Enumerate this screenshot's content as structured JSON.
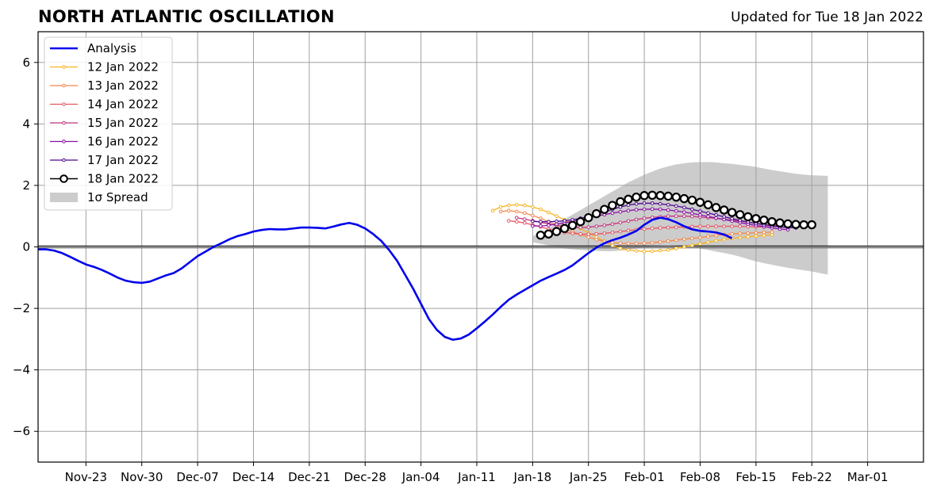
{
  "header": {
    "title": "NORTH ATLANTIC OSCILLATION",
    "subtitle": "Updated for Tue 18 Jan 2022"
  },
  "chart_data": {
    "type": "line",
    "title": "NORTH ATLANTIC OSCILLATION",
    "subtitle": "Updated for Tue 18 Jan 2022",
    "xlabel": "",
    "ylabel": "",
    "ylim": [
      -7,
      7
    ],
    "yticks": [
      -6,
      -4,
      -2,
      0,
      2,
      4,
      6
    ],
    "ytick_labels": [
      "−6",
      "−4",
      "−2",
      "0",
      "2",
      "4",
      "6"
    ],
    "x_start": "2021-11-17",
    "x_end": "2022-03-08",
    "xticks": [
      "2021-11-23",
      "2021-11-30",
      "2021-12-07",
      "2021-12-14",
      "2021-12-21",
      "2021-12-28",
      "2022-01-04",
      "2022-01-11",
      "2022-01-18",
      "2022-01-25",
      "2022-02-01",
      "2022-02-08",
      "2022-02-15",
      "2022-02-22",
      "2022-03-01"
    ],
    "xtick_labels": [
      "Nov-23",
      "Nov-30",
      "Dec-07",
      "Dec-14",
      "Dec-21",
      "Dec-28",
      "Jan-04",
      "Jan-11",
      "Jan-18",
      "Jan-25",
      "Feb-01",
      "Feb-08",
      "Feb-15",
      "Feb-22",
      "Mar-01"
    ],
    "grid": true,
    "zero_line": true,
    "legend_position": "top-left",
    "colors": {
      "analysis": "#0000ee",
      "spread": "#cccccc",
      "grid": "#a0a0a0"
    },
    "analysis": {
      "name": "Analysis",
      "start_date": "2021-11-17",
      "values": [
        -0.08,
        -0.08,
        -0.12,
        -0.2,
        -0.32,
        -0.45,
        -0.57,
        -0.65,
        -0.75,
        -0.87,
        -1.0,
        -1.1,
        -1.15,
        -1.17,
        -1.13,
        -1.03,
        -0.93,
        -0.85,
        -0.7,
        -0.5,
        -0.3,
        -0.15,
        0.0,
        0.12,
        0.25,
        0.35,
        0.42,
        0.5,
        0.55,
        0.58,
        0.57,
        0.57,
        0.6,
        0.63,
        0.63,
        0.62,
        0.6,
        0.66,
        0.73,
        0.78,
        0.72,
        0.6,
        0.42,
        0.2,
        -0.1,
        -0.45,
        -0.9,
        -1.35,
        -1.85,
        -2.35,
        -2.7,
        -2.93,
        -3.02,
        -2.98,
        -2.85,
        -2.65,
        -2.43,
        -2.2,
        -1.95,
        -1.72,
        -1.55,
        -1.4,
        -1.25,
        -1.1,
        -0.98,
        -0.87,
        -0.75,
        -0.6,
        -0.4,
        -0.2,
        -0.02,
        0.12,
        0.22,
        0.3,
        0.4,
        0.52,
        0.72,
        0.88,
        0.95,
        0.9,
        0.8,
        0.67,
        0.57,
        0.52,
        0.5,
        0.47,
        0.4,
        0.28
      ]
    },
    "forecasts": [
      {
        "name": "12 Jan 2022",
        "color": "#f7b21c",
        "start_date": "2022-01-13",
        "values": [
          1.18,
          1.3,
          1.35,
          1.37,
          1.35,
          1.3,
          1.22,
          1.12,
          1.0,
          0.88,
          0.74,
          0.6,
          0.45,
          0.32,
          0.18,
          0.05,
          -0.05,
          -0.1,
          -0.13,
          -0.15,
          -0.14,
          -0.12,
          -0.1,
          -0.05,
          0.0,
          0.05,
          0.1,
          0.15,
          0.2,
          0.24,
          0.28,
          0.3,
          0.33,
          0.35,
          0.37,
          0.4
        ]
      },
      {
        "name": "13 Jan 2022",
        "color": "#f5874a",
        "start_date": "2022-01-14",
        "values": [
          1.15,
          1.18,
          1.15,
          1.1,
          1.02,
          0.93,
          0.82,
          0.72,
          0.6,
          0.5,
          0.4,
          0.32,
          0.24,
          0.18,
          0.14,
          0.12,
          0.11,
          0.11,
          0.12,
          0.14,
          0.16,
          0.19,
          0.22,
          0.25,
          0.28,
          0.3,
          0.34,
          0.37,
          0.4,
          0.42,
          0.44,
          0.45,
          0.46,
          0.47,
          0.48
        ]
      },
      {
        "name": "14 Jan 2022",
        "color": "#e65462",
        "start_date": "2022-01-15",
        "values": [
          0.85,
          0.82,
          0.78,
          0.72,
          0.65,
          0.58,
          0.52,
          0.47,
          0.44,
          0.42,
          0.41,
          0.42,
          0.44,
          0.47,
          0.5,
          0.53,
          0.56,
          0.58,
          0.6,
          0.62,
          0.63,
          0.64,
          0.65,
          0.66,
          0.67,
          0.67,
          0.67,
          0.67,
          0.67,
          0.67,
          0.66,
          0.65,
          0.65,
          0.64
        ]
      },
      {
        "name": "15 Jan 2022",
        "color": "#c2357d",
        "start_date": "2022-01-16",
        "values": [
          0.95,
          0.9,
          0.85,
          0.8,
          0.75,
          0.7,
          0.66,
          0.64,
          0.63,
          0.64,
          0.67,
          0.7,
          0.74,
          0.79,
          0.84,
          0.89,
          0.93,
          0.96,
          0.98,
          1.0,
          1.0,
          1.0,
          0.99,
          0.97,
          0.95,
          0.93,
          0.9,
          0.87,
          0.84,
          0.8,
          0.77,
          0.73,
          0.7,
          0.68
        ]
      },
      {
        "name": "16 Jan 2022",
        "color": "#8c0ea8",
        "start_date": "2022-01-18",
        "values": [
          0.68,
          0.68,
          0.7,
          0.74,
          0.78,
          0.83,
          0.88,
          0.94,
          1.0,
          1.05,
          1.1,
          1.14,
          1.18,
          1.21,
          1.22,
          1.23,
          1.22,
          1.2,
          1.17,
          1.13,
          1.09,
          1.04,
          0.99,
          0.94,
          0.89,
          0.84,
          0.79,
          0.74,
          0.7,
          0.66,
          0.62,
          0.58,
          0.56
        ]
      },
      {
        "name": "17 Jan 2022",
        "color": "#4e0690",
        "start_date": "2022-01-18",
        "values": [
          0.83,
          0.82,
          0.82,
          0.83,
          0.85,
          0.88,
          0.93,
          0.99,
          1.06,
          1.14,
          1.22,
          1.3,
          1.36,
          1.4,
          1.42,
          1.42,
          1.4,
          1.37,
          1.33,
          1.28,
          1.22,
          1.16,
          1.1,
          1.04,
          0.98,
          0.92,
          0.86,
          0.81,
          0.76,
          0.72,
          0.68,
          0.65,
          0.63,
          0.62
        ]
      },
      {
        "name": "18 Jan 2022",
        "color": "#000000",
        "start_date": "2022-01-19",
        "values": [
          0.38,
          0.42,
          0.5,
          0.6,
          0.7,
          0.82,
          0.95,
          1.08,
          1.22,
          1.35,
          1.47,
          1.55,
          1.62,
          1.67,
          1.68,
          1.67,
          1.65,
          1.62,
          1.57,
          1.52,
          1.45,
          1.37,
          1.28,
          1.2,
          1.12,
          1.05,
          0.98,
          0.92,
          0.87,
          0.82,
          0.78,
          0.75,
          0.73,
          0.72,
          0.72
        ]
      }
    ],
    "spread": {
      "name": "1σ Spread",
      "start_date": "2022-01-18",
      "upper": [
        0.35,
        0.45,
        0.6,
        0.75,
        0.9,
        1.05,
        1.2,
        1.35,
        1.5,
        1.65,
        1.8,
        1.95,
        2.1,
        2.22,
        2.35,
        2.45,
        2.55,
        2.62,
        2.68,
        2.72,
        2.75,
        2.76,
        2.76,
        2.75,
        2.72,
        2.7,
        2.67,
        2.64,
        2.6,
        2.55,
        2.5,
        2.46,
        2.42,
        2.38,
        2.35,
        2.33,
        2.32,
        2.31
      ],
      "lower": [
        0.15,
        0.1,
        0.05,
        0.0,
        -0.05,
        -0.08,
        -0.1,
        -0.12,
        -0.13,
        -0.14,
        -0.14,
        -0.12,
        -0.1,
        -0.05,
        0.0,
        0.03,
        0.05,
        0.06,
        0.05,
        0.02,
        0.0,
        -0.05,
        -0.1,
        -0.15,
        -0.2,
        -0.25,
        -0.32,
        -0.4,
        -0.47,
        -0.53,
        -0.58,
        -0.63,
        -0.68,
        -0.72,
        -0.76,
        -0.8,
        -0.85,
        -0.9
      ]
    }
  }
}
